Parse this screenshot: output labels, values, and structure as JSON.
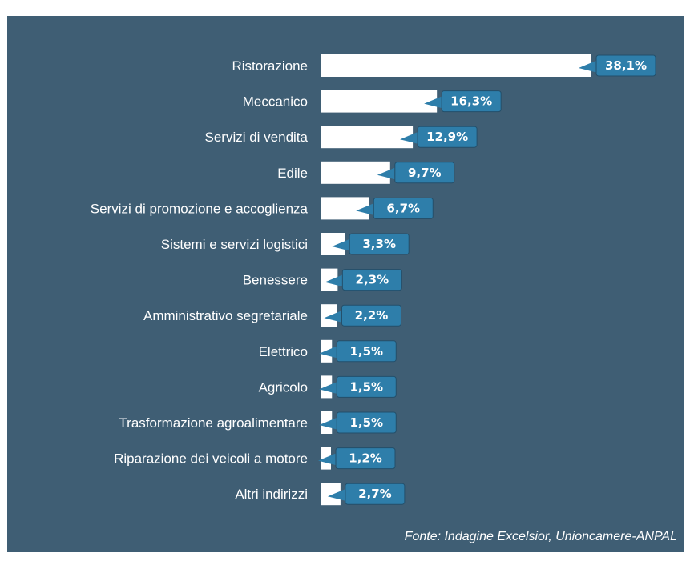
{
  "colors": {
    "background": "#3f5e74",
    "bar": "#ffffff",
    "badge": "#2e7eaa",
    "text": "#ffffff"
  },
  "chart_data": {
    "type": "bar",
    "orientation": "horizontal",
    "categories": [
      "Ristorazione",
      "Meccanico",
      "Servizi di vendita",
      "Edile",
      "Servizi di promozione e accoglienza",
      "Sistemi e servizi logistici",
      "Benessere",
      "Amministrativo segretariale",
      "Elettrico",
      "Agricolo",
      "Trasformazione agroalimentare",
      "Riparazione dei veicoli a motore",
      "Altri indirizzi"
    ],
    "values": [
      38.1,
      16.3,
      12.9,
      9.7,
      6.7,
      3.3,
      2.3,
      2.2,
      1.5,
      1.5,
      1.5,
      1.2,
      2.7
    ],
    "value_labels": [
      "38,1%",
      "16,3%",
      "12,9%",
      "9,7%",
      "6,7%",
      "3,3%",
      "2,3%",
      "2,2%",
      "1,5%",
      "1,5%",
      "1,5%",
      "1,2%",
      "2,7%"
    ],
    "title": "",
    "xlabel": "",
    "ylabel": "",
    "xlim": [
      0,
      38.1
    ],
    "grid": false,
    "legend": "none"
  },
  "source": "Fonte: Indagine Excelsior, Unioncamere-ANPAL"
}
